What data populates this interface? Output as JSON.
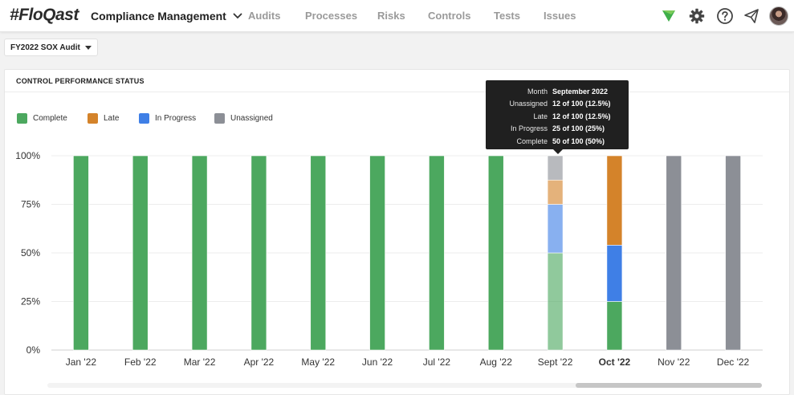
{
  "header": {
    "logo": "#FloQast",
    "module": "Compliance Management",
    "nav": [
      "Audits",
      "Processes",
      "Risks",
      "Controls",
      "Tests",
      "Issues"
    ],
    "icons": [
      "flag-icon",
      "gear-icon",
      "help-icon",
      "send-icon",
      "avatar"
    ]
  },
  "audit_selector": {
    "value": "FY2022 SOX Audit"
  },
  "card": {
    "title": "CONTROL PERFORMANCE STATUS"
  },
  "legend": [
    {
      "label": "Complete",
      "color": "#4ca85f"
    },
    {
      "label": "Late",
      "color": "#d4832a"
    },
    {
      "label": "In Progress",
      "color": "#3f7fe6"
    },
    {
      "label": "Unassigned",
      "color": "#8c8f96"
    }
  ],
  "tooltip": {
    "rows": [
      {
        "label": "Month",
        "value": "September 2022"
      },
      {
        "label": "Unassigned",
        "value": "12 of 100 (12.5%)"
      },
      {
        "label": "Late",
        "value": "12 of 100 (12.5%)"
      },
      {
        "label": "In Progress",
        "value": "25 of 100 (25%)"
      },
      {
        "label": "Complete",
        "value": "50 of 100 (50%)"
      }
    ]
  },
  "chart_data": {
    "type": "bar",
    "stacked": true,
    "categories": [
      "Jan '22",
      "Feb '22",
      "Mar '22",
      "Apr '22",
      "May '22",
      "Jun '22",
      "Jul '22",
      "Aug '22",
      "Sept '22",
      "Oct '22",
      "Nov '22",
      "Dec '22"
    ],
    "y_ticks": [
      "100%",
      "75%",
      "50%",
      "25%",
      "0%"
    ],
    "ylim": [
      0,
      100
    ],
    "highlighted_category": "Sept '22",
    "bold_category": "Oct '22",
    "series": [
      {
        "name": "Complete",
        "color": "#4ca85f",
        "values": [
          100,
          100,
          100,
          100,
          100,
          100,
          100,
          100,
          50,
          25,
          0,
          0
        ]
      },
      {
        "name": "In Progress",
        "color": "#3f7fe6",
        "values": [
          0,
          0,
          0,
          0,
          0,
          0,
          0,
          0,
          25,
          29,
          0,
          0
        ]
      },
      {
        "name": "Late",
        "color": "#d4832a",
        "values": [
          0,
          0,
          0,
          0,
          0,
          0,
          0,
          0,
          12.5,
          46,
          0,
          0
        ]
      },
      {
        "name": "Unassigned",
        "color": "#8c8f96",
        "values": [
          0,
          0,
          0,
          0,
          0,
          0,
          0,
          0,
          12.5,
          0,
          100,
          100
        ]
      }
    ]
  }
}
